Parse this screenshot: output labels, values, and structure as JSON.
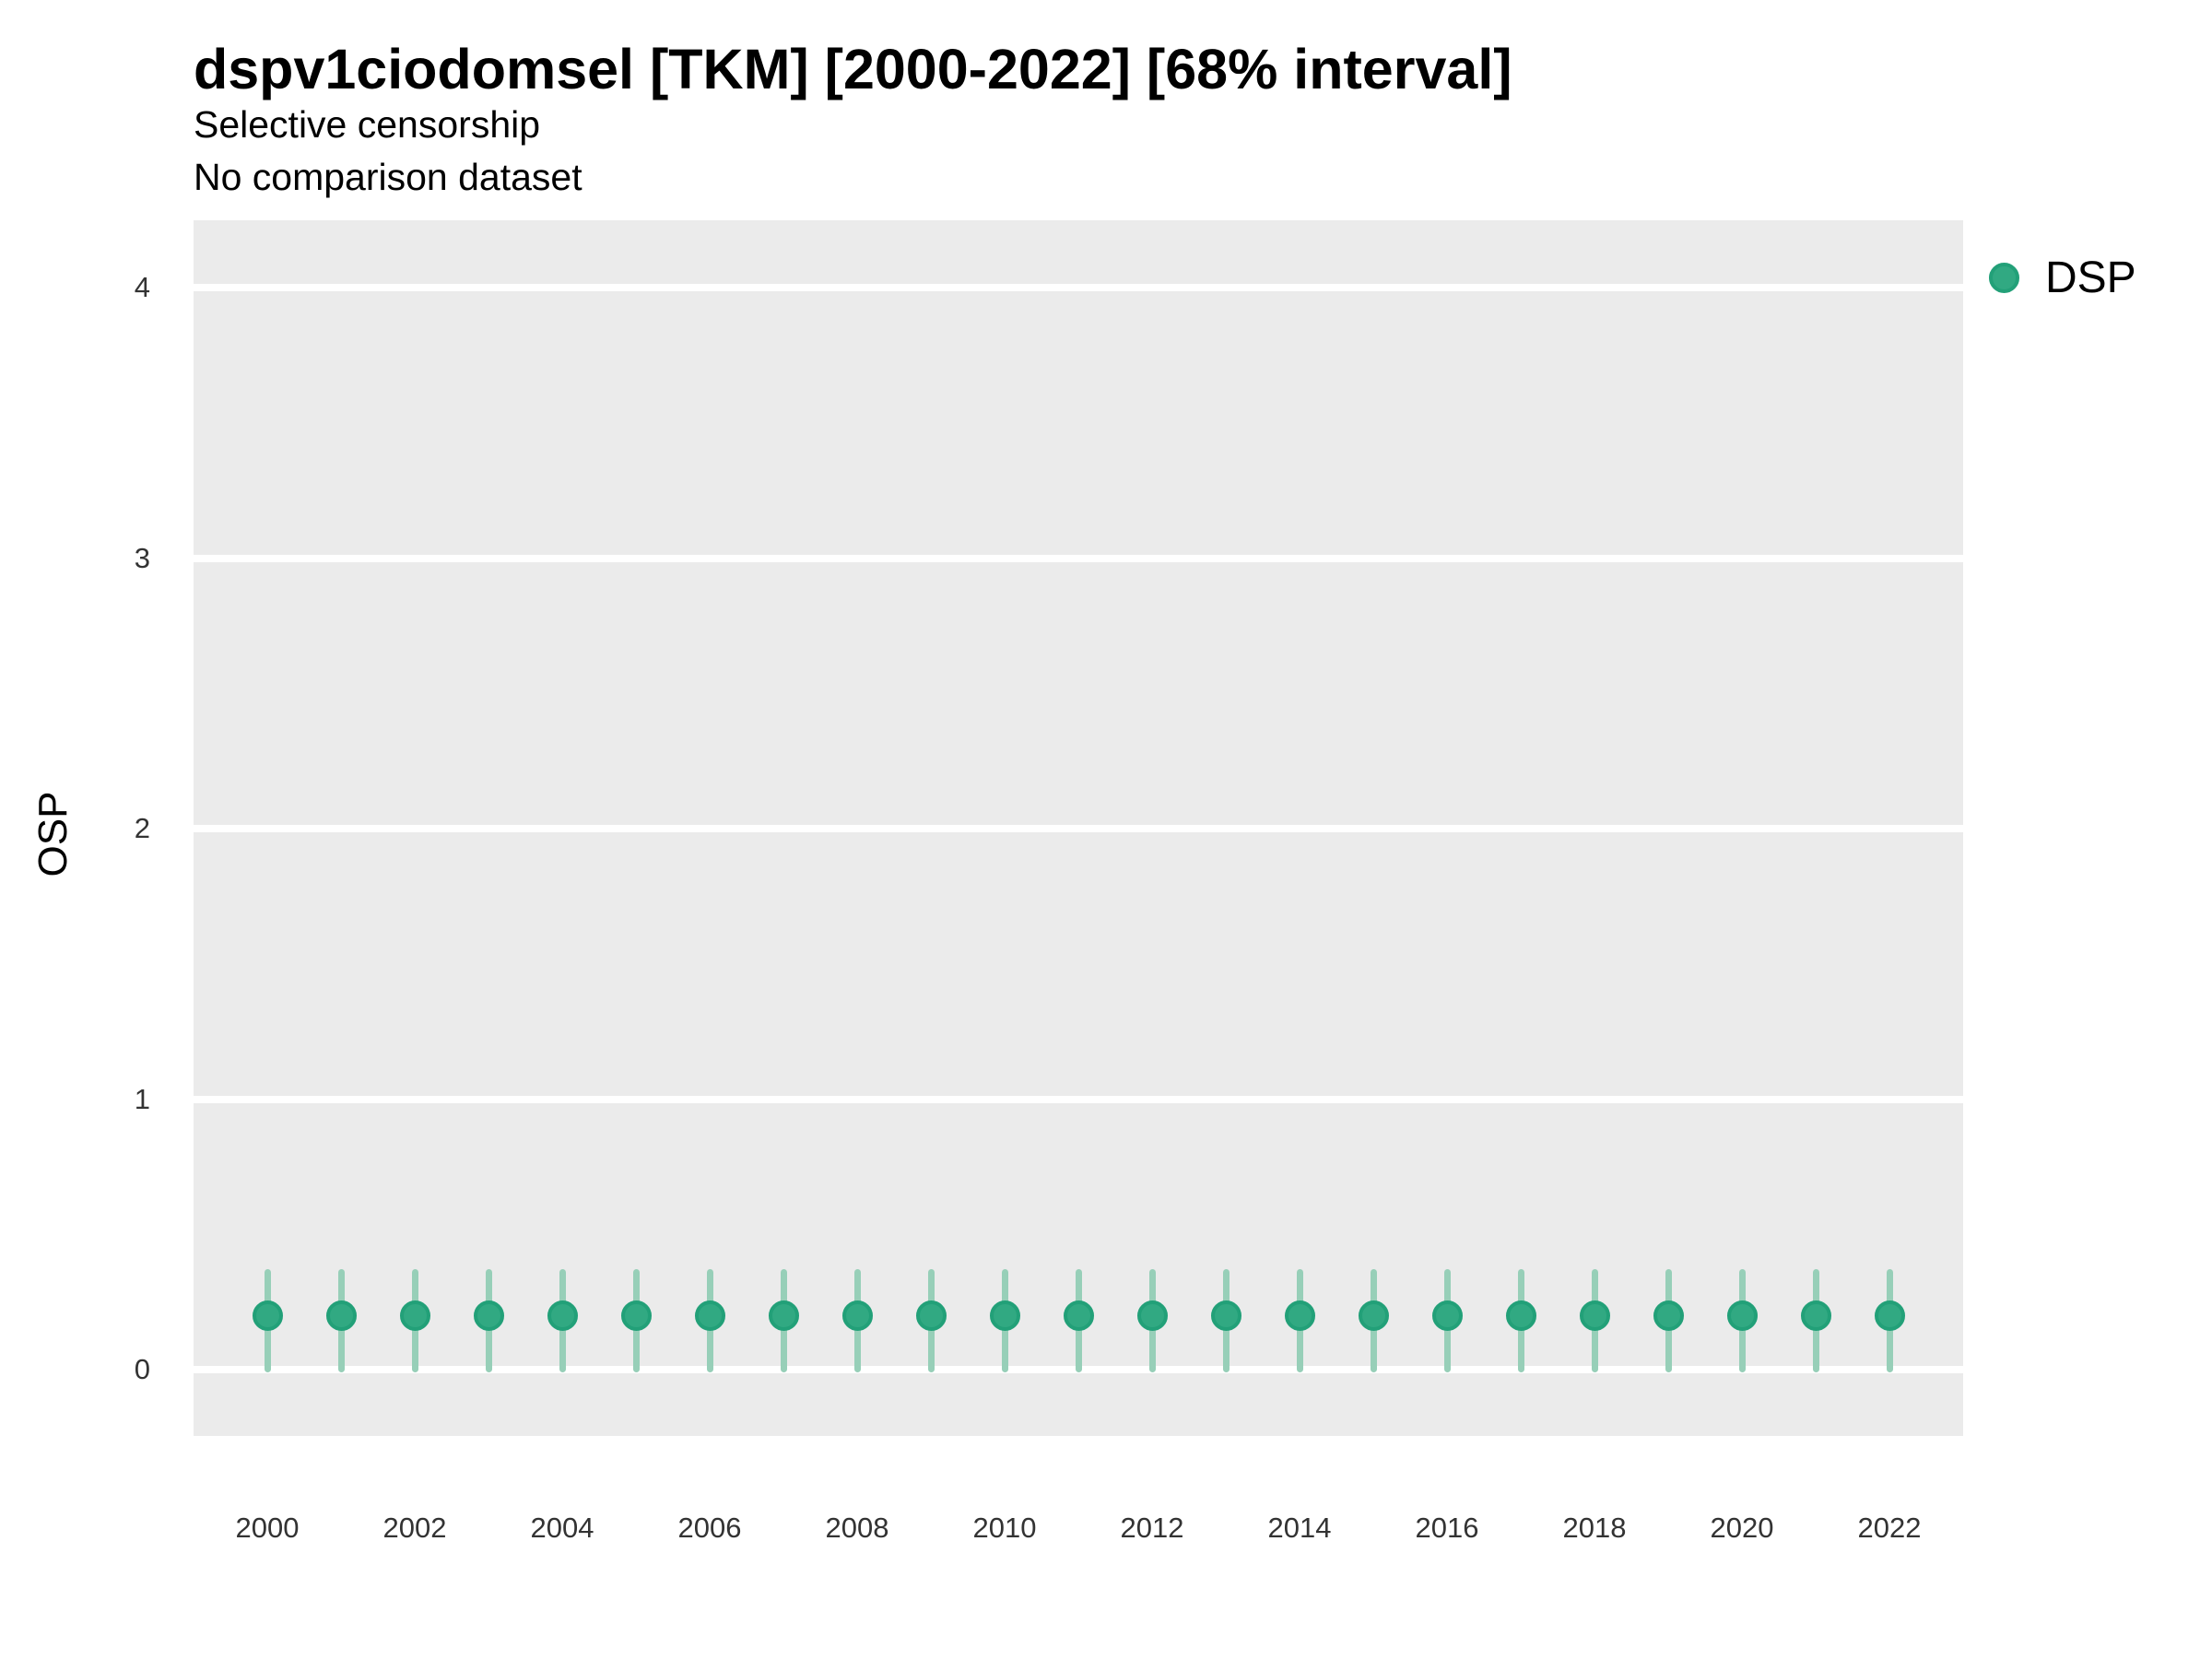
{
  "header": {
    "title": "dspv1ciodomsel [TKM] [2000-2022] [68% interval]",
    "subtitle_lines": [
      "Selective censorship",
      "No comparison dataset"
    ]
  },
  "y_axis": {
    "title": "OSP",
    "ticks": [
      0,
      1,
      2,
      3,
      4
    ]
  },
  "x_axis": {
    "ticks": [
      2000,
      2002,
      2004,
      2006,
      2008,
      2010,
      2012,
      2014,
      2016,
      2018,
      2020,
      2022
    ]
  },
  "legend": {
    "items": [
      {
        "label": "DSP",
        "color": "#31a982"
      }
    ]
  },
  "colors": {
    "point_fill": "#31a982",
    "point_stroke": "#22a078",
    "interval_bar": "#97cfb8",
    "panel_background": "#ebebeb",
    "gridline": "#ffffff",
    "tick_text": "#333333",
    "title_text": "#000000"
  },
  "chart_data": {
    "type": "scatter",
    "subtype": "pointrange",
    "title": "dspv1ciodomsel [TKM] [2000-2022] [68% interval]",
    "subtitle": "Selective censorship",
    "note": "No comparison dataset",
    "xlabel": "",
    "ylabel": "OSP",
    "ylim": [
      -0.25,
      4.25
    ],
    "y_ticks": [
      0,
      1,
      2,
      3,
      4
    ],
    "x_ticks_shown": [
      2000,
      2002,
      2004,
      2006,
      2008,
      2010,
      2012,
      2014,
      2016,
      2018,
      2020,
      2022
    ],
    "grid": "horizontal-major-only",
    "legend_position": "right-top",
    "x": [
      2000,
      2001,
      2002,
      2003,
      2004,
      2005,
      2006,
      2007,
      2008,
      2009,
      2010,
      2011,
      2012,
      2013,
      2014,
      2015,
      2016,
      2017,
      2018,
      2019,
      2020,
      2021,
      2022
    ],
    "series": [
      {
        "name": "DSP",
        "values": [
          0.2,
          0.2,
          0.2,
          0.2,
          0.2,
          0.2,
          0.2,
          0.2,
          0.2,
          0.2,
          0.2,
          0.2,
          0.2,
          0.2,
          0.2,
          0.2,
          0.2,
          0.2,
          0.2,
          0.2,
          0.2,
          0.2,
          0.2
        ],
        "lower": [
          0.0,
          0.0,
          0.0,
          0.0,
          0.0,
          0.0,
          0.0,
          0.0,
          0.0,
          0.0,
          0.0,
          0.0,
          0.0,
          0.0,
          0.0,
          0.0,
          0.0,
          0.0,
          0.0,
          0.0,
          0.0,
          0.0,
          0.0
        ],
        "upper": [
          0.36,
          0.36,
          0.36,
          0.36,
          0.36,
          0.36,
          0.36,
          0.36,
          0.36,
          0.36,
          0.36,
          0.36,
          0.36,
          0.36,
          0.36,
          0.36,
          0.36,
          0.36,
          0.36,
          0.36,
          0.36,
          0.36,
          0.36
        ]
      }
    ],
    "interval_label": "68% interval"
  }
}
